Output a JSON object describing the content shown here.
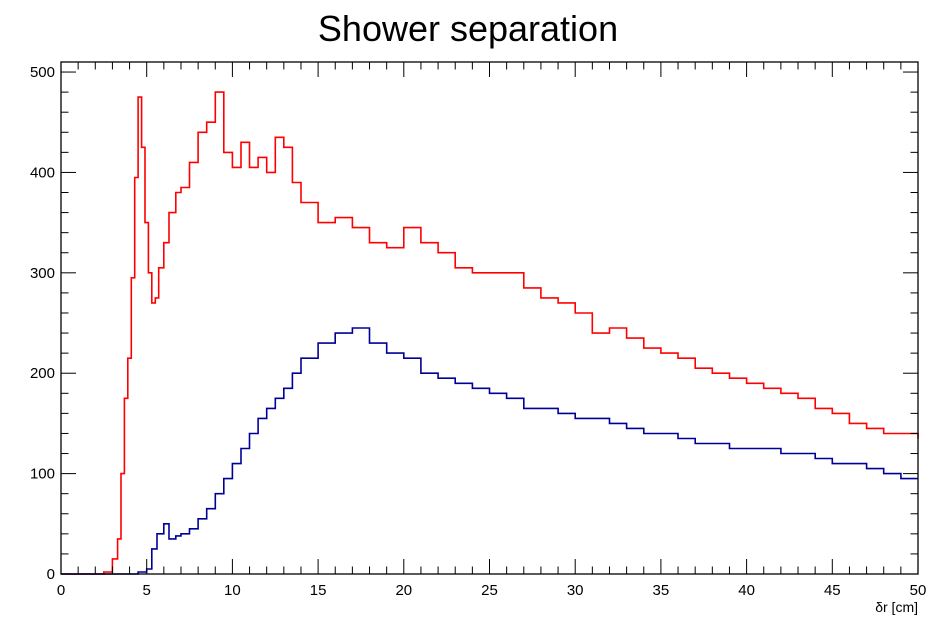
{
  "chart_data": {
    "type": "line",
    "title": "Shower separation",
    "xlabel": "δr [cm]",
    "ylabel": "",
    "xlim": [
      0,
      50
    ],
    "ylim": [
      0,
      510
    ],
    "xticks": [
      0,
      5,
      10,
      15,
      20,
      25,
      30,
      35,
      40,
      45,
      50
    ],
    "xtick_labels": [
      "0",
      "5",
      "10",
      "15",
      "20",
      "25",
      "30",
      "35",
      "40",
      "45",
      "50"
    ],
    "yticks": [
      0,
      100,
      200,
      300,
      400,
      500
    ],
    "ytick_labels": [
      "0",
      "100",
      "200",
      "300",
      "400",
      "500"
    ],
    "grid": false,
    "legend": "none",
    "series": [
      {
        "color": "#ff0000",
        "x": [
          0,
          2,
          2.5,
          3,
          3.3,
          3.5,
          3.7,
          3.9,
          4.1,
          4.3,
          4.5,
          4.7,
          4.9,
          5.1,
          5.3,
          5.5,
          5.7,
          6.0,
          6.3,
          6.7,
          7.0,
          7.5,
          8.0,
          8.5,
          9.0,
          9.5,
          10,
          10.5,
          11,
          11.5,
          12,
          12.5,
          13,
          13.5,
          14,
          15,
          16,
          17,
          18,
          19,
          20,
          21,
          22,
          23,
          24,
          25,
          26,
          27,
          28,
          29,
          30,
          31,
          32,
          33,
          34,
          35,
          36,
          37,
          38,
          39,
          40,
          41,
          42,
          43,
          44,
          45,
          46,
          47,
          48,
          49,
          50
        ],
        "values": [
          0,
          0,
          2,
          15,
          35,
          100,
          175,
          215,
          295,
          395,
          475,
          425,
          350,
          300,
          270,
          275,
          305,
          330,
          360,
          380,
          385,
          410,
          440,
          450,
          480,
          420,
          405,
          430,
          405,
          415,
          400,
          435,
          425,
          390,
          370,
          350,
          355,
          345,
          330,
          325,
          345,
          330,
          320,
          305,
          300,
          300,
          300,
          285,
          275,
          270,
          260,
          240,
          245,
          235,
          225,
          220,
          215,
          205,
          200,
          195,
          190,
          185,
          180,
          175,
          165,
          160,
          150,
          145,
          140,
          140,
          135
        ]
      },
      {
        "color": "#000099",
        "x": [
          0,
          3,
          4,
          4.5,
          5,
          5.3,
          5.6,
          6.0,
          6.3,
          6.7,
          7.0,
          7.5,
          8.0,
          8.5,
          9.0,
          9.5,
          10,
          10.5,
          11,
          11.5,
          12,
          12.5,
          13,
          13.5,
          14,
          15,
          16,
          17,
          18,
          19,
          20,
          21,
          22,
          23,
          24,
          25,
          26,
          27,
          28,
          29,
          30,
          31,
          32,
          33,
          34,
          35,
          36,
          37,
          38,
          39,
          40,
          41,
          42,
          43,
          44,
          45,
          46,
          47,
          48,
          49,
          50
        ],
        "values": [
          0,
          0,
          0,
          2,
          5,
          25,
          40,
          50,
          35,
          38,
          40,
          45,
          55,
          65,
          80,
          95,
          110,
          125,
          140,
          155,
          165,
          175,
          185,
          200,
          215,
          230,
          240,
          245,
          230,
          220,
          215,
          200,
          195,
          190,
          185,
          180,
          175,
          165,
          165,
          160,
          155,
          155,
          150,
          145,
          140,
          140,
          135,
          130,
          130,
          125,
          125,
          125,
          120,
          120,
          115,
          110,
          110,
          105,
          100,
          95,
          95
        ]
      }
    ]
  }
}
